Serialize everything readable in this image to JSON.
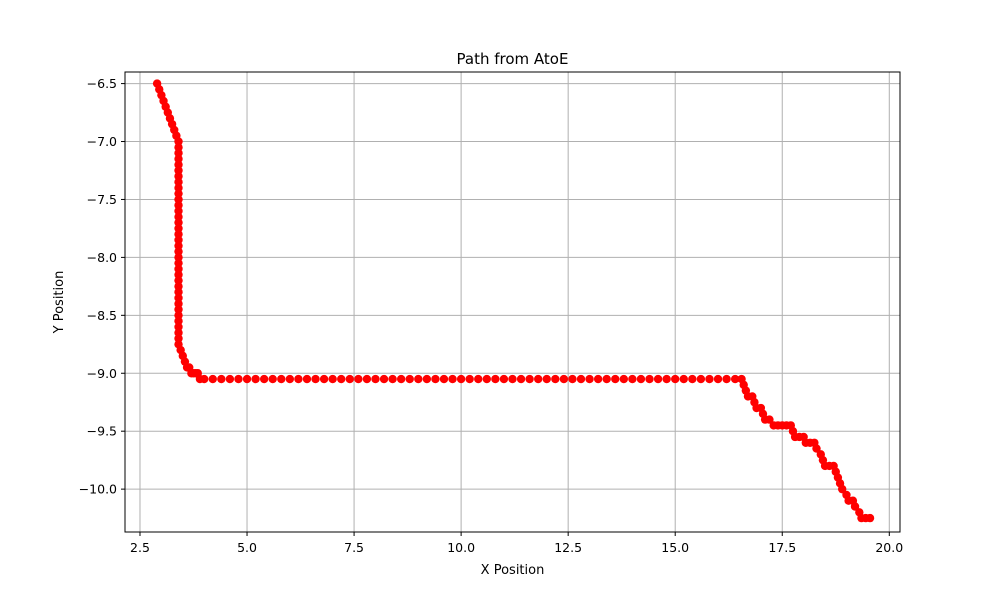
{
  "chart_data": {
    "type": "scatter",
    "title": "Path from AtoE",
    "xlabel": "X Position",
    "ylabel": "Y Position",
    "xlim": [
      2.15,
      20.25
    ],
    "ylim": [
      -10.37,
      -6.4
    ],
    "xticks": [
      2.5,
      5.0,
      7.5,
      10.0,
      12.5,
      15.0,
      17.5,
      20.0
    ],
    "xtick_labels": [
      "2.5",
      "5.0",
      "7.5",
      "10.0",
      "12.5",
      "15.0",
      "17.5",
      "20.0"
    ],
    "yticks": [
      -6.5,
      -7.0,
      -7.5,
      -8.0,
      -8.5,
      -9.0,
      -9.5,
      -10.0
    ],
    "ytick_labels": [
      "−6.5",
      "−7.0",
      "−7.5",
      "−8.0",
      "−8.5",
      "−9.0",
      "−9.5",
      "−10.0"
    ],
    "grid": true,
    "marker_color": "#ff0000",
    "series": [
      {
        "points": [
          [
            2.9,
            -6.5
          ],
          [
            2.95,
            -6.55
          ],
          [
            3.0,
            -6.6
          ],
          [
            3.05,
            -6.65
          ],
          [
            3.1,
            -6.7
          ],
          [
            3.15,
            -6.75
          ],
          [
            3.2,
            -6.8
          ],
          [
            3.25,
            -6.85
          ],
          [
            3.3,
            -6.9
          ],
          [
            3.35,
            -6.95
          ],
          [
            3.4,
            -7.0
          ],
          [
            3.4,
            -7.05
          ],
          [
            3.4,
            -7.1
          ],
          [
            3.4,
            -7.15
          ],
          [
            3.4,
            -7.2
          ],
          [
            3.4,
            -7.25
          ],
          [
            3.4,
            -7.3
          ],
          [
            3.4,
            -7.35
          ],
          [
            3.4,
            -7.4
          ],
          [
            3.4,
            -7.45
          ],
          [
            3.4,
            -7.5
          ],
          [
            3.4,
            -7.55
          ],
          [
            3.4,
            -7.6
          ],
          [
            3.4,
            -7.65
          ],
          [
            3.4,
            -7.7
          ],
          [
            3.4,
            -7.75
          ],
          [
            3.4,
            -7.8
          ],
          [
            3.4,
            -7.85
          ],
          [
            3.4,
            -7.9
          ],
          [
            3.4,
            -7.95
          ],
          [
            3.4,
            -8.0
          ],
          [
            3.4,
            -8.05
          ],
          [
            3.4,
            -8.1
          ],
          [
            3.4,
            -8.15
          ],
          [
            3.4,
            -8.2
          ],
          [
            3.4,
            -8.25
          ],
          [
            3.4,
            -8.3
          ],
          [
            3.4,
            -8.35
          ],
          [
            3.4,
            -8.4
          ],
          [
            3.4,
            -8.45
          ],
          [
            3.4,
            -8.5
          ],
          [
            3.4,
            -8.55
          ],
          [
            3.4,
            -8.6
          ],
          [
            3.4,
            -8.65
          ],
          [
            3.4,
            -8.7
          ],
          [
            3.4,
            -8.75
          ],
          [
            3.45,
            -8.8
          ],
          [
            3.5,
            -8.85
          ],
          [
            3.55,
            -8.9
          ],
          [
            3.6,
            -8.95
          ],
          [
            3.65,
            -8.95
          ],
          [
            3.7,
            -9.0
          ],
          [
            3.75,
            -9.0
          ],
          [
            3.8,
            -9.0
          ],
          [
            3.85,
            -9.0
          ],
          [
            3.9,
            -9.05
          ],
          [
            4.0,
            -9.05
          ],
          [
            4.2,
            -9.05
          ],
          [
            4.4,
            -9.05
          ],
          [
            4.6,
            -9.05
          ],
          [
            4.8,
            -9.05
          ],
          [
            5.0,
            -9.05
          ],
          [
            5.2,
            -9.05
          ],
          [
            5.4,
            -9.05
          ],
          [
            5.6,
            -9.05
          ],
          [
            5.8,
            -9.05
          ],
          [
            6.0,
            -9.05
          ],
          [
            6.2,
            -9.05
          ],
          [
            6.4,
            -9.05
          ],
          [
            6.6,
            -9.05
          ],
          [
            6.8,
            -9.05
          ],
          [
            7.0,
            -9.05
          ],
          [
            7.2,
            -9.05
          ],
          [
            7.4,
            -9.05
          ],
          [
            7.6,
            -9.05
          ],
          [
            7.8,
            -9.05
          ],
          [
            8.0,
            -9.05
          ],
          [
            8.2,
            -9.05
          ],
          [
            8.4,
            -9.05
          ],
          [
            8.6,
            -9.05
          ],
          [
            8.8,
            -9.05
          ],
          [
            9.0,
            -9.05
          ],
          [
            9.2,
            -9.05
          ],
          [
            9.4,
            -9.05
          ],
          [
            9.6,
            -9.05
          ],
          [
            9.8,
            -9.05
          ],
          [
            10.0,
            -9.05
          ],
          [
            10.2,
            -9.05
          ],
          [
            10.4,
            -9.05
          ],
          [
            10.6,
            -9.05
          ],
          [
            10.8,
            -9.05
          ],
          [
            11.0,
            -9.05
          ],
          [
            11.2,
            -9.05
          ],
          [
            11.4,
            -9.05
          ],
          [
            11.6,
            -9.05
          ],
          [
            11.8,
            -9.05
          ],
          [
            12.0,
            -9.05
          ],
          [
            12.2,
            -9.05
          ],
          [
            12.4,
            -9.05
          ],
          [
            12.6,
            -9.05
          ],
          [
            12.8,
            -9.05
          ],
          [
            13.0,
            -9.05
          ],
          [
            13.2,
            -9.05
          ],
          [
            13.4,
            -9.05
          ],
          [
            13.6,
            -9.05
          ],
          [
            13.8,
            -9.05
          ],
          [
            14.0,
            -9.05
          ],
          [
            14.2,
            -9.05
          ],
          [
            14.4,
            -9.05
          ],
          [
            14.6,
            -9.05
          ],
          [
            14.8,
            -9.05
          ],
          [
            15.0,
            -9.05
          ],
          [
            15.2,
            -9.05
          ],
          [
            15.4,
            -9.05
          ],
          [
            15.6,
            -9.05
          ],
          [
            15.8,
            -9.05
          ],
          [
            16.0,
            -9.05
          ],
          [
            16.2,
            -9.05
          ],
          [
            16.4,
            -9.05
          ],
          [
            16.55,
            -9.05
          ],
          [
            16.6,
            -9.1
          ],
          [
            16.65,
            -9.15
          ],
          [
            16.7,
            -9.2
          ],
          [
            16.8,
            -9.2
          ],
          [
            16.85,
            -9.25
          ],
          [
            16.9,
            -9.3
          ],
          [
            17.0,
            -9.3
          ],
          [
            17.05,
            -9.35
          ],
          [
            17.1,
            -9.4
          ],
          [
            17.2,
            -9.4
          ],
          [
            17.3,
            -9.45
          ],
          [
            17.4,
            -9.45
          ],
          [
            17.5,
            -9.45
          ],
          [
            17.6,
            -9.45
          ],
          [
            17.7,
            -9.45
          ],
          [
            17.75,
            -9.5
          ],
          [
            17.8,
            -9.55
          ],
          [
            17.9,
            -9.55
          ],
          [
            18.0,
            -9.55
          ],
          [
            18.05,
            -9.6
          ],
          [
            18.15,
            -9.6
          ],
          [
            18.25,
            -9.6
          ],
          [
            18.3,
            -9.65
          ],
          [
            18.4,
            -9.7
          ],
          [
            18.45,
            -9.75
          ],
          [
            18.5,
            -9.8
          ],
          [
            18.6,
            -9.8
          ],
          [
            18.7,
            -9.8
          ],
          [
            18.75,
            -9.85
          ],
          [
            18.8,
            -9.9
          ],
          [
            18.85,
            -9.95
          ],
          [
            18.9,
            -10.0
          ],
          [
            19.0,
            -10.05
          ],
          [
            19.05,
            -10.1
          ],
          [
            19.15,
            -10.1
          ],
          [
            19.2,
            -10.15
          ],
          [
            19.3,
            -10.2
          ],
          [
            19.35,
            -10.25
          ],
          [
            19.45,
            -10.25
          ],
          [
            19.55,
            -10.25
          ]
        ]
      }
    ]
  }
}
